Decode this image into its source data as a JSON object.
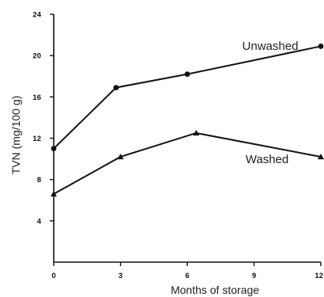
{
  "chart_data": {
    "type": "line",
    "title": "",
    "xlabel": "Months of storage",
    "ylabel": "TVN (mg/100 g)",
    "xlim": [
      0,
      12
    ],
    "ylim": [
      0,
      24
    ],
    "x_ticks": [
      0,
      3,
      6,
      9,
      12
    ],
    "y_ticks": [
      4,
      8,
      12,
      16,
      20,
      24
    ],
    "x_tick_labels": [
      "0",
      "3",
      "6",
      "9",
      "12"
    ],
    "y_tick_labels": [
      "4",
      "8",
      "12",
      "16",
      "20",
      "24"
    ],
    "grid": false,
    "series": [
      {
        "name": "Unwashed",
        "marker": "circle",
        "color": "#111111",
        "x": [
          0,
          2.8,
          6,
          12
        ],
        "y": [
          11,
          16.9,
          18.2,
          20.9
        ]
      },
      {
        "name": "Washed",
        "marker": "triangle",
        "color": "#111111",
        "x": [
          0,
          3,
          6.4,
          12
        ],
        "y": [
          6.6,
          10.2,
          12.5,
          10.2
        ]
      }
    ]
  }
}
